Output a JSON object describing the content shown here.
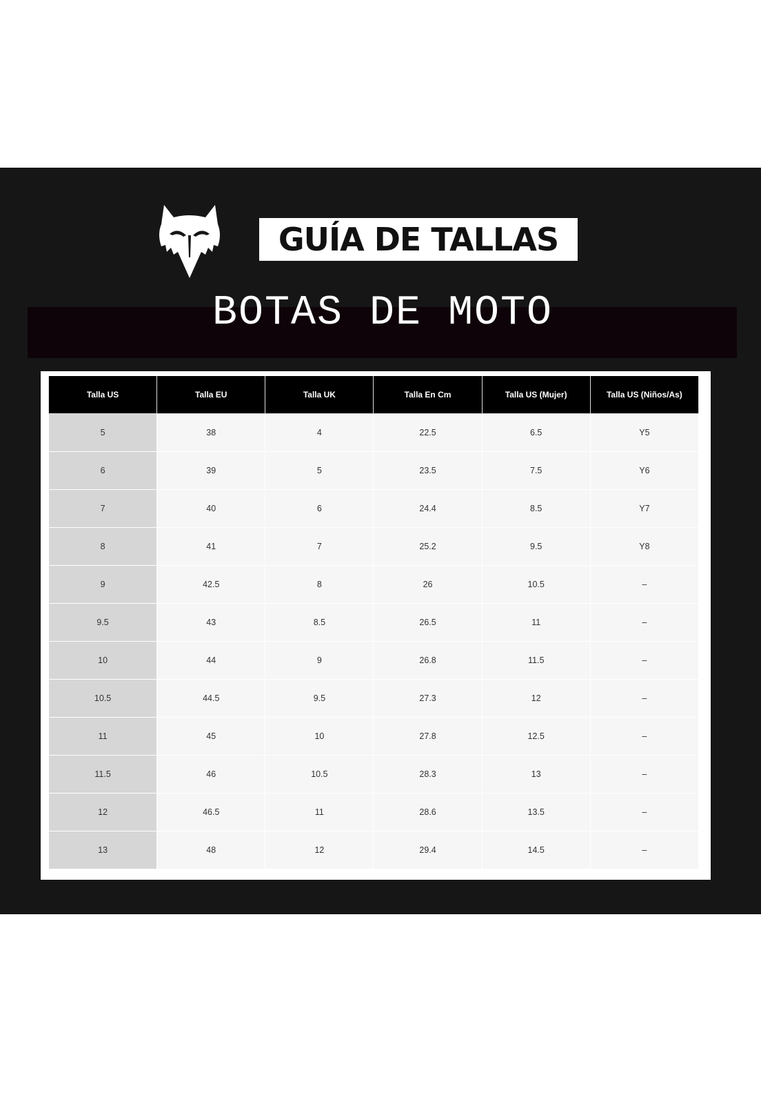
{
  "header": {
    "logo": "fox-head-logo",
    "title": "GUÍA DE TALLAS",
    "subtitle": "BOTAS DE MOTO"
  },
  "table": {
    "columns": [
      "Talla US",
      "Talla EU",
      "Talla UK",
      "Talla En Cm",
      "Talla US (Mujer)",
      "Talla US (Niños/As)"
    ],
    "rows": [
      [
        "5",
        "38",
        "4",
        "22.5",
        "6.5",
        "Y5"
      ],
      [
        "6",
        "39",
        "5",
        "23.5",
        "7.5",
        "Y6"
      ],
      [
        "7",
        "40",
        "6",
        "24.4",
        "8.5",
        "Y7"
      ],
      [
        "8",
        "41",
        "7",
        "25.2",
        "9.5",
        "Y8"
      ],
      [
        "9",
        "42.5",
        "8",
        "26",
        "10.5",
        "–"
      ],
      [
        "9.5",
        "43",
        "8.5",
        "26.5",
        "11",
        "–"
      ],
      [
        "10",
        "44",
        "9",
        "26.8",
        "11.5",
        "–"
      ],
      [
        "10.5",
        "44.5",
        "9.5",
        "27.3",
        "12",
        "–"
      ],
      [
        "11",
        "45",
        "10",
        "27.8",
        "12.5",
        "–"
      ],
      [
        "11.5",
        "46",
        "10.5",
        "28.3",
        "13",
        "–"
      ],
      [
        "12",
        "46.5",
        "11",
        "28.6",
        "13.5",
        "–"
      ],
      [
        "13",
        "48",
        "12",
        "29.4",
        "14.5",
        "–"
      ]
    ]
  }
}
